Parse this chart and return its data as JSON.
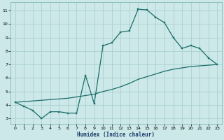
{
  "xlabel": "Humidex (Indice chaleur)",
  "bg_color": "#cce8e8",
  "grid_color": "#aacfcf",
  "line_color": "#1a6e6a",
  "xlim": [
    -0.5,
    23.5
  ],
  "ylim": [
    2.6,
    11.6
  ],
  "xticks": [
    0,
    1,
    2,
    3,
    4,
    5,
    6,
    7,
    8,
    9,
    10,
    11,
    12,
    13,
    14,
    15,
    16,
    17,
    18,
    19,
    20,
    21,
    22,
    23
  ],
  "yticks": [
    3,
    4,
    5,
    6,
    7,
    8,
    9,
    10,
    11
  ],
  "line1_x": [
    0,
    1,
    2,
    3,
    4,
    5,
    6,
    7,
    8,
    9,
    10,
    11,
    12,
    13,
    14,
    15,
    16,
    17,
    18,
    19,
    20,
    21,
    22,
    23
  ],
  "line1_y": [
    4.2,
    3.9,
    3.6,
    3.0,
    3.5,
    3.5,
    3.4,
    3.4,
    6.2,
    4.1,
    8.4,
    8.6,
    9.4,
    9.5,
    11.1,
    11.05,
    10.5,
    10.1,
    9.0,
    8.2,
    8.4,
    8.2,
    7.5,
    7.0
  ],
  "line2_x": [
    0,
    1,
    2,
    3,
    4,
    5,
    6,
    7,
    8,
    9,
    10,
    11,
    12,
    13,
    14,
    15,
    16,
    17,
    18,
    19,
    20,
    21,
    22,
    23
  ],
  "line2_y": [
    4.2,
    4.25,
    4.3,
    4.35,
    4.4,
    4.45,
    4.5,
    4.6,
    4.7,
    4.8,
    5.0,
    5.15,
    5.35,
    5.6,
    5.9,
    6.1,
    6.3,
    6.5,
    6.65,
    6.75,
    6.85,
    6.9,
    6.95,
    7.0
  ]
}
